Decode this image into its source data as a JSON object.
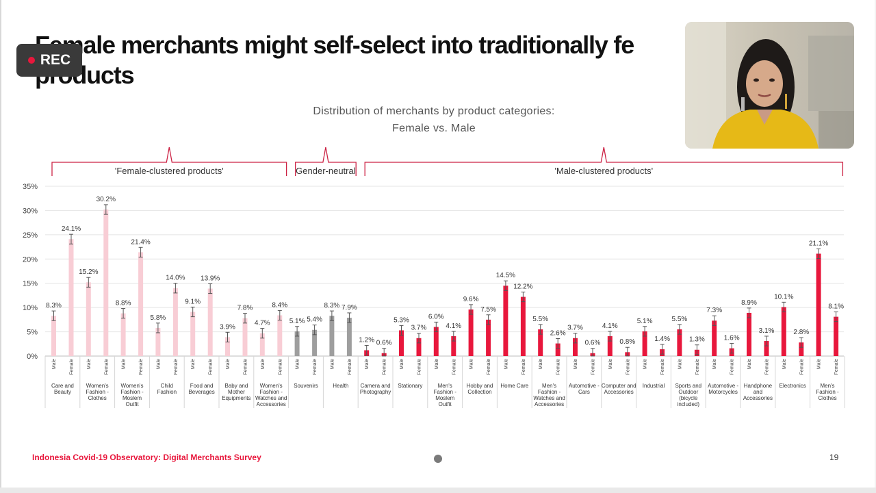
{
  "slide": {
    "title": "Female merchants might self-select into traditionally fe\nproducts",
    "chart_heading_line1": "Distribution of merchants by product categories:",
    "chart_heading_line2": "Female vs. Male",
    "footer": "Indonesia Covid-19 Observatory: Digital Merchants Survey",
    "page_number": "19"
  },
  "recording": {
    "label": "REC"
  },
  "colors": {
    "female_group": "#f8cdd5",
    "neutral_group": "#9e9e9e",
    "male_group": "#e8173c",
    "bracket": "#cc2244"
  },
  "chart_data": {
    "type": "bar",
    "ylim": [
      0,
      35
    ],
    "yticks": [
      "0%",
      "5%",
      "10%",
      "15%",
      "20%",
      "25%",
      "30%",
      "35%"
    ],
    "grid": true,
    "brackets": [
      {
        "label": "'Female-clustered products'",
        "group": "female"
      },
      {
        "label": "Gender-neutral",
        "group": "neutral"
      },
      {
        "label": "'Male-clustered products'",
        "group": "male"
      }
    ],
    "categories": [
      {
        "name": "Care and Beauty",
        "group": "female",
        "male": 8.3,
        "female": 24.1,
        "male_label": "8.3%",
        "female_label": "24.1%"
      },
      {
        "name": "Women's Fashion - Clothes",
        "group": "female",
        "male": 15.2,
        "female": 30.2,
        "male_label": "15.2%",
        "female_label": "30.2%"
      },
      {
        "name": "Women's Fashion - Moslem Outfit",
        "group": "female",
        "male": 8.8,
        "female": 21.4,
        "male_label": "8.8%",
        "female_label": "21.4%"
      },
      {
        "name": "Child Fashion",
        "group": "female",
        "male": 5.8,
        "female": 14.0,
        "male_label": "5.8%",
        "female_label": "14.0%"
      },
      {
        "name": "Food and Beverages",
        "group": "female",
        "male": 9.1,
        "female": 13.9,
        "male_label": "9.1%",
        "female_label": "13.9%"
      },
      {
        "name": "Baby and Mother Equipments",
        "group": "female",
        "male": 3.9,
        "female": 7.8,
        "male_label": "3.9%",
        "female_label": "7.8%"
      },
      {
        "name": "Women's Fashion - Watches and Accessories",
        "group": "female",
        "male": 4.7,
        "female": 8.4,
        "male_label": "4.7%",
        "female_label": "8.4%"
      },
      {
        "name": "Souvenirs",
        "group": "neutral",
        "male": 5.1,
        "female": 5.4,
        "male_label": "5.1%",
        "female_label": "5.4%"
      },
      {
        "name": "Health",
        "group": "neutral",
        "male": 8.3,
        "female": 7.9,
        "male_label": "8.3%",
        "female_label": "7.9%"
      },
      {
        "name": "Camera and Photography",
        "group": "male",
        "male": 1.2,
        "female": 0.6,
        "male_label": "1.2%",
        "female_label": "0.6%"
      },
      {
        "name": "Stationary",
        "group": "male",
        "male": 5.3,
        "female": 3.7,
        "male_label": "5.3%",
        "female_label": "3.7%"
      },
      {
        "name": "Men's Fashion - Moslem Outfit",
        "group": "male",
        "male": 6.0,
        "female": 4.1,
        "male_label": "6.0%",
        "female_label": "4.1%"
      },
      {
        "name": "Hobby and Collection",
        "group": "male",
        "male": 9.6,
        "female": 7.5,
        "male_label": "9.6%",
        "female_label": "7.5%"
      },
      {
        "name": "Home Care",
        "group": "male",
        "male": 14.5,
        "female": 12.2,
        "male_label": "14.5%",
        "female_label": "12.2%"
      },
      {
        "name": "Men's Fashion - Watches and Accessories",
        "group": "male",
        "male": 5.5,
        "female": 2.6,
        "male_label": "5.5%",
        "female_label": "2.6%"
      },
      {
        "name": "Automotive - Cars",
        "group": "male",
        "male": 3.7,
        "female": 0.6,
        "male_label": "3.7%",
        "female_label": "0.6%"
      },
      {
        "name": "Computer and Accessories",
        "group": "male",
        "male": 4.1,
        "female": 0.8,
        "male_label": "4.1%",
        "female_label": "0.8%"
      },
      {
        "name": "Industrial",
        "group": "male",
        "male": 5.1,
        "female": 1.4,
        "male_label": "5.1%",
        "female_label": "1.4%"
      },
      {
        "name": "Sports and Outdoor (bicycle included)",
        "group": "male",
        "male": 5.5,
        "female": 1.3,
        "male_label": "5.5%",
        "female_label": "1.3%"
      },
      {
        "name": "Automotive - Motorcycles",
        "group": "male",
        "male": 7.3,
        "female": 1.6,
        "male_label": "7.3%",
        "female_label": "1.6%"
      },
      {
        "name": "Handphone and Accessories",
        "group": "male",
        "male": 8.9,
        "female": 3.1,
        "male_label": "8.9%",
        "female_label": "3.1%"
      },
      {
        "name": "Electronics",
        "group": "male",
        "male": 10.1,
        "female": 2.8,
        "male_label": "10.1%",
        "female_label": "2.8%"
      },
      {
        "name": "Men's Fashion - Clothes",
        "group": "male",
        "male": 21.1,
        "female": 8.1,
        "male_label": "21.1%",
        "female_label": "8.1%"
      }
    ],
    "bar_names": [
      "Male",
      "Female"
    ]
  }
}
